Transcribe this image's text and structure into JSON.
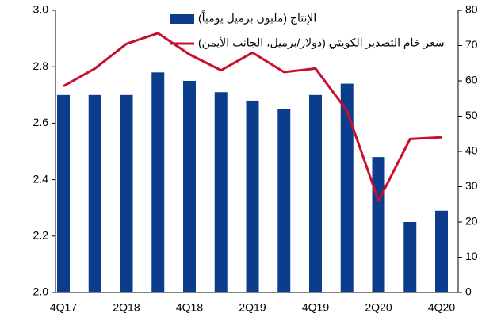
{
  "chart_data": {
    "type": "bar-line",
    "categories": [
      "4Q17",
      null,
      "2Q18",
      null,
      "4Q18",
      null,
      "2Q19",
      null,
      "4Q19",
      null,
      "2Q20",
      null,
      "4Q20"
    ],
    "series": [
      {
        "name": "الإنتاج (مليون برميل يومياً)",
        "color": "#0b3d8c",
        "type": "bar",
        "axis": "y",
        "values": [
          2.7,
          2.7,
          2.7,
          2.78,
          2.75,
          2.71,
          2.68,
          2.65,
          2.7,
          2.74,
          2.48,
          2.25,
          2.29
        ]
      },
      {
        "name": "سعر خام التصدير الكويتي (دولار/برميل، الجانب الأيمن)",
        "color": "#c8102e",
        "type": "line",
        "axis": "y2",
        "values": [
          58.5,
          63.5,
          70.5,
          73.5,
          67.5,
          63,
          68,
          62.5,
          63.5,
          51.5,
          26,
          43.5,
          44
        ]
      }
    ],
    "ylim": [
      2.0,
      3.0
    ],
    "yticks": [
      {
        "value": 2.0,
        "label": "2.0"
      },
      2.2,
      2.4,
      2.6,
      2.8,
      {
        "value": 3.0,
        "label": "3.0"
      }
    ],
    "y2lim": [
      0,
      80
    ],
    "y2ticks": [
      0,
      10,
      20,
      30,
      40,
      50,
      60,
      70,
      80
    ]
  }
}
